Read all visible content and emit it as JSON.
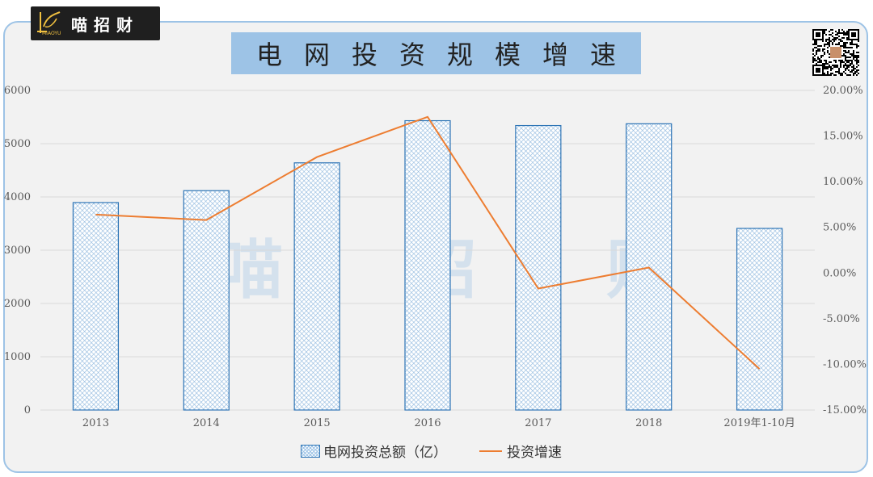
{
  "brand": {
    "name": "喵招财",
    "mark_caption": "MIAOYU"
  },
  "title": "电网投资规模增速",
  "watermark": [
    "喵",
    "招",
    "财"
  ],
  "colors": {
    "bar_stroke": "#2e75b6",
    "bar_fill": "#9dc3e6",
    "line": "#ed7d31",
    "title_bg": "#9dc3e6",
    "frame_border": "#9dc3e6",
    "grid": "#d9d9d9"
  },
  "chart_data": {
    "type": "bar",
    "title": "电网投资规模增速",
    "categories": [
      "2013",
      "2014",
      "2015",
      "2016",
      "2017",
      "2018",
      "2019年1-10月"
    ],
    "series": [
      {
        "name": "电网投资总额（亿）",
        "type": "bar",
        "axis": "left",
        "values": [
          3894,
          4118,
          4640,
          5431,
          5340,
          5373,
          3409
        ]
      },
      {
        "name": "投资增速",
        "type": "line",
        "axis": "right",
        "values": [
          6.4,
          5.8,
          12.7,
          17.1,
          -1.7,
          0.6,
          -10.5
        ]
      }
    ],
    "y_left": {
      "min": 0,
      "max": 6000,
      "ticks": [
        "0",
        "1000",
        "2000",
        "3000",
        "4000",
        "5000",
        "6000"
      ]
    },
    "y_right": {
      "min": -15,
      "max": 20,
      "ticks": [
        "-15.00%",
        "-10.00%",
        "-5.00%",
        "0.00%",
        "5.00%",
        "10.00%",
        "15.00%",
        "20.00%"
      ]
    },
    "grid": true,
    "legend_position": "bottom"
  }
}
